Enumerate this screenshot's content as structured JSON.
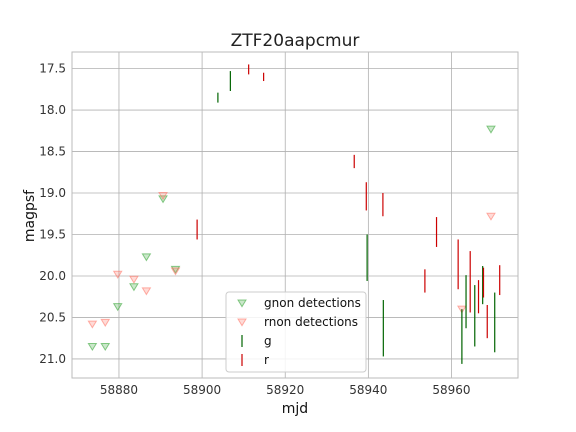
{
  "chart_data": {
    "type": "scatter",
    "title": "ZTF20aapcmur",
    "xlabel": "mjd",
    "ylabel": "magpsf",
    "xlim": [
      58868.7,
      58976.0
    ],
    "ylim": [
      21.23,
      17.3
    ],
    "y_inverted": true,
    "grid": true,
    "legend_position": "lower-center",
    "xticks": [
      58880,
      58900,
      58920,
      58940,
      58960
    ],
    "yticks": [
      17.5,
      18.0,
      18.5,
      19.0,
      19.5,
      20.0,
      20.5,
      21.0
    ],
    "series": [
      {
        "name": "gnon detections",
        "marker": "triangle-down",
        "color": "#2ca02c",
        "points": [
          {
            "x": 58873.6,
            "y": 20.85
          },
          {
            "x": 58876.7,
            "y": 20.85
          },
          {
            "x": 58879.7,
            "y": 20.37
          },
          {
            "x": 58883.6,
            "y": 20.13
          },
          {
            "x": 58886.6,
            "y": 19.77
          },
          {
            "x": 58890.6,
            "y": 19.07
          },
          {
            "x": 58893.6,
            "y": 19.92
          },
          {
            "x": 58969.5,
            "y": 18.23
          }
        ]
      },
      {
        "name": "rnon detections",
        "marker": "triangle-down",
        "color": "#ff6f61",
        "points": [
          {
            "x": 58873.6,
            "y": 20.58
          },
          {
            "x": 58876.7,
            "y": 20.56
          },
          {
            "x": 58879.7,
            "y": 19.98
          },
          {
            "x": 58883.6,
            "y": 20.04
          },
          {
            "x": 58886.6,
            "y": 20.18
          },
          {
            "x": 58890.6,
            "y": 19.03
          },
          {
            "x": 58893.6,
            "y": 19.94
          },
          {
            "x": 58962.5,
            "y": 20.4
          },
          {
            "x": 58969.5,
            "y": 19.28
          }
        ]
      },
      {
        "name": "g",
        "marker": "errorbar",
        "color": "#006400",
        "points": [
          {
            "x": 58903.8,
            "y": 17.85,
            "err": 0.06
          },
          {
            "x": 58906.8,
            "y": 17.65,
            "err": 0.12
          },
          {
            "x": 58939.7,
            "y": 19.78,
            "err": 0.28
          },
          {
            "x": 58943.6,
            "y": 20.63,
            "err": 0.34
          },
          {
            "x": 58962.5,
            "y": 20.73,
            "err": 0.33
          },
          {
            "x": 58963.5,
            "y": 20.31,
            "err": 0.32
          },
          {
            "x": 58965.6,
            "y": 20.48,
            "err": 0.37
          },
          {
            "x": 58967.5,
            "y": 20.11,
            "err": 0.23
          },
          {
            "x": 58970.4,
            "y": 20.56,
            "err": 0.36
          }
        ]
      },
      {
        "name": "r",
        "marker": "errorbar",
        "color": "#cc0000",
        "points": [
          {
            "x": 58898.8,
            "y": 19.44,
            "err": 0.12
          },
          {
            "x": 58911.2,
            "y": 17.51,
            "err": 0.06
          },
          {
            "x": 58914.8,
            "y": 17.6,
            "err": 0.05
          },
          {
            "x": 58936.6,
            "y": 18.62,
            "err": 0.08
          },
          {
            "x": 58939.5,
            "y": 19.04,
            "err": 0.17
          },
          {
            "x": 58943.5,
            "y": 19.14,
            "err": 0.14
          },
          {
            "x": 58953.6,
            "y": 20.06,
            "err": 0.14
          },
          {
            "x": 58956.4,
            "y": 19.47,
            "err": 0.18
          },
          {
            "x": 58961.6,
            "y": 19.86,
            "err": 0.3
          },
          {
            "x": 58964.5,
            "y": 20.07,
            "err": 0.37
          },
          {
            "x": 58966.5,
            "y": 20.25,
            "err": 0.2
          },
          {
            "x": 58967.7,
            "y": 20.08,
            "err": 0.18
          },
          {
            "x": 58968.6,
            "y": 20.55,
            "err": 0.2
          },
          {
            "x": 58971.6,
            "y": 20.05,
            "err": 0.18
          }
        ]
      }
    ]
  }
}
